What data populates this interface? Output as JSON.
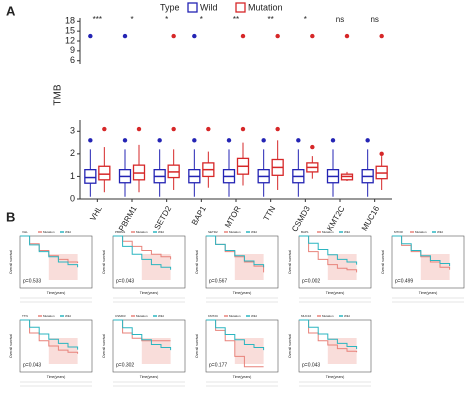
{
  "panels": [
    "A",
    "B"
  ],
  "chart_data": [
    {
      "type": "box",
      "ylabel": "TMB",
      "legend_title": "Type",
      "categories": [
        "VHL",
        "PBRM1",
        "SETD2",
        "BAP1",
        "MTOR",
        "TTN",
        "CSMD3",
        "KMT2C",
        "MUC16"
      ],
      "significance": [
        "***",
        "*",
        "*",
        "*",
        "**",
        "**",
        "*",
        "ns",
        "ns"
      ],
      "ylim": [
        0,
        3.5
      ],
      "yticks": [
        0,
        1,
        2,
        3
      ],
      "ylim_upper": [
        5,
        19
      ],
      "yticks_upper": [
        6,
        9,
        12,
        15,
        18
      ],
      "series": [
        {
          "name": "Wild",
          "color": "#2424b4",
          "median": [
            0.95,
            1.0,
            1.0,
            1.0,
            1.0,
            1.0,
            1.0,
            1.0,
            1.0
          ],
          "q1": [
            0.7,
            0.72,
            0.72,
            0.72,
            0.72,
            0.72,
            0.72,
            0.72,
            0.72
          ],
          "q3": [
            1.3,
            1.3,
            1.3,
            1.3,
            1.3,
            1.3,
            1.3,
            1.3,
            1.3
          ],
          "low": [
            0.1,
            0.1,
            0.1,
            0.1,
            0.1,
            0.1,
            0.1,
            0.1,
            0.1
          ],
          "high": [
            2.2,
            2.2,
            2.2,
            2.2,
            2.2,
            2.2,
            2.2,
            2.2,
            2.2
          ],
          "outlier": [
            2.6,
            2.6,
            2.6,
            2.6,
            2.6,
            2.6,
            2.6,
            2.6,
            2.6
          ],
          "top_outlier": [
            13.5,
            13.5,
            null,
            13.5,
            null,
            null,
            null,
            null,
            null
          ]
        },
        {
          "name": "Mutation",
          "color": "#d62728",
          "median": [
            1.1,
            1.15,
            1.2,
            1.3,
            1.45,
            1.4,
            1.4,
            1.0,
            1.15
          ],
          "q1": [
            0.85,
            0.85,
            0.95,
            1.0,
            1.1,
            1.05,
            1.2,
            0.85,
            0.9
          ],
          "q3": [
            1.45,
            1.5,
            1.5,
            1.6,
            1.8,
            1.75,
            1.6,
            1.1,
            1.45
          ],
          "low": [
            0.3,
            0.3,
            0.4,
            0.5,
            0.6,
            0.4,
            0.9,
            0.8,
            0.4
          ],
          "high": [
            2.3,
            2.4,
            2.2,
            2.1,
            2.5,
            2.6,
            1.9,
            1.2,
            1.9
          ],
          "outlier": [
            3.1,
            3.1,
            3.1,
            3.1,
            3.1,
            3.1,
            2.3,
            null,
            2.0
          ],
          "top_outlier": [
            null,
            null,
            13.5,
            null,
            13.5,
            13.5,
            13.5,
            13.5,
            13.5
          ]
        }
      ]
    },
    {
      "type": "km",
      "title": "VHL",
      "p": "p=0.533",
      "xlabel": "Time(years)",
      "ylabel": "Overall survival",
      "xlim": [
        0,
        15
      ],
      "ylim": [
        0,
        1
      ],
      "x": [
        0,
        2,
        4,
        6,
        8,
        10,
        12
      ],
      "series": [
        {
          "name": "Mutation",
          "color": "#e8827a",
          "values": [
            1,
            0.85,
            0.72,
            0.62,
            0.55,
            0.5,
            0.48
          ]
        },
        {
          "name": "Wild",
          "color": "#2bb5c0",
          "values": [
            1,
            0.83,
            0.7,
            0.6,
            0.5,
            0.45,
            0.4
          ]
        }
      ]
    },
    {
      "type": "km",
      "title": "PBRM1",
      "p": "p=0.043",
      "xlabel": "Time(years)",
      "ylabel": "Overall survival",
      "xlim": [
        0,
        15
      ],
      "ylim": [
        0,
        1
      ],
      "x": [
        0,
        2,
        4,
        6,
        8,
        10,
        12
      ],
      "series": [
        {
          "name": "Mutation",
          "color": "#e8827a",
          "values": [
            1,
            0.9,
            0.8,
            0.72,
            0.65,
            0.6,
            0.55
          ]
        },
        {
          "name": "Wild",
          "color": "#2bb5c0",
          "values": [
            1,
            0.8,
            0.65,
            0.55,
            0.45,
            0.4,
            0.35
          ]
        }
      ]
    },
    {
      "type": "km",
      "title": "SETD2",
      "p": "p=0.567",
      "xlabel": "Time(years)",
      "ylabel": "Overall survival",
      "xlim": [
        0,
        15
      ],
      "ylim": [
        0,
        1
      ],
      "x": [
        0,
        2,
        4,
        6,
        8,
        10,
        12
      ],
      "series": [
        {
          "name": "Mutation",
          "color": "#e8827a",
          "values": [
            1,
            0.84,
            0.7,
            0.6,
            0.5,
            0.42,
            0.3
          ]
        },
        {
          "name": "Wild",
          "color": "#2bb5c0",
          "values": [
            1,
            0.84,
            0.72,
            0.62,
            0.52,
            0.45,
            0.4
          ]
        }
      ]
    },
    {
      "type": "km",
      "title": "BAP1",
      "p": "p=0.002",
      "xlabel": "Time(years)",
      "ylabel": "Overall survival",
      "xlim": [
        0,
        15
      ],
      "ylim": [
        0,
        1
      ],
      "x": [
        0,
        2,
        4,
        6,
        8,
        10,
        12
      ],
      "series": [
        {
          "name": "Mutation",
          "color": "#e8827a",
          "values": [
            1,
            0.7,
            0.55,
            0.45,
            0.38,
            0.35,
            0.3
          ]
        },
        {
          "name": "Wild",
          "color": "#2bb5c0",
          "values": [
            1,
            0.86,
            0.74,
            0.64,
            0.55,
            0.5,
            0.45
          ]
        }
      ]
    },
    {
      "type": "km",
      "title": "MTOR",
      "p": "p=0.499",
      "xlabel": "Time(years)",
      "ylabel": "Overall survival",
      "xlim": [
        0,
        15
      ],
      "ylim": [
        0,
        1
      ],
      "x": [
        0,
        2,
        4,
        6,
        8,
        10,
        12
      ],
      "series": [
        {
          "name": "Mutation",
          "color": "#e8827a",
          "values": [
            1,
            0.82,
            0.7,
            0.6,
            0.5,
            0.4,
            0.35
          ]
        },
        {
          "name": "Wild",
          "color": "#2bb5c0",
          "values": [
            1,
            0.85,
            0.72,
            0.62,
            0.53,
            0.47,
            0.42
          ]
        }
      ]
    },
    {
      "type": "km",
      "title": "TTN",
      "p": "p=0.043",
      "xlabel": "Time(years)",
      "ylabel": "Overall survival",
      "xlim": [
        0,
        15
      ],
      "ylim": [
        0,
        1
      ],
      "x": [
        0,
        2,
        4,
        6,
        8,
        10,
        12
      ],
      "series": [
        {
          "name": "Mutation",
          "color": "#e8827a",
          "values": [
            1,
            0.75,
            0.6,
            0.5,
            0.42,
            0.38,
            0.35
          ]
        },
        {
          "name": "Wild",
          "color": "#2bb5c0",
          "values": [
            1,
            0.86,
            0.73,
            0.63,
            0.55,
            0.48,
            0.43
          ]
        }
      ]
    },
    {
      "type": "km",
      "title": "CSMD3",
      "p": "p=0.302",
      "xlabel": "Time(years)",
      "ylabel": "Overall survival",
      "xlim": [
        0,
        15
      ],
      "ylim": [
        0,
        1
      ],
      "x": [
        0,
        2,
        4,
        6,
        8,
        10,
        12
      ],
      "series": [
        {
          "name": "Mutation",
          "color": "#e8827a",
          "values": [
            1,
            0.75,
            0.65,
            0.6,
            0.6,
            0.6,
            0.6
          ]
        },
        {
          "name": "Wild",
          "color": "#2bb5c0",
          "values": [
            1,
            0.85,
            0.72,
            0.62,
            0.53,
            0.47,
            0.42
          ]
        }
      ]
    },
    {
      "type": "km",
      "title": "KMT2C",
      "p": "p=0.177",
      "xlabel": "Time(years)",
      "ylabel": "Overall survival",
      "xlim": [
        0,
        15
      ],
      "ylim": [
        0,
        1
      ],
      "x": [
        0,
        2,
        4,
        6,
        8,
        10,
        12
      ],
      "series": [
        {
          "name": "Mutation",
          "color": "#e8827a",
          "values": [
            1,
            0.8,
            0.6,
            0.3,
            0.1,
            0.1,
            0.1
          ]
        },
        {
          "name": "Wild",
          "color": "#2bb5c0",
          "values": [
            1,
            0.85,
            0.72,
            0.62,
            0.53,
            0.47,
            0.42
          ]
        }
      ]
    },
    {
      "type": "km",
      "title": "MUC16",
      "p": "p=0.043",
      "xlabel": "Time(years)",
      "ylabel": "Overall survival",
      "xlim": [
        0,
        15
      ],
      "ylim": [
        0,
        1
      ],
      "x": [
        0,
        2,
        4,
        6,
        8,
        10,
        12
      ],
      "series": [
        {
          "name": "Mutation",
          "color": "#e8827a",
          "values": [
            1,
            0.75,
            0.6,
            0.52,
            0.45,
            0.4,
            0.38
          ]
        },
        {
          "name": "Wild",
          "color": "#2bb5c0",
          "values": [
            1,
            0.86,
            0.73,
            0.63,
            0.55,
            0.49,
            0.44
          ]
        }
      ]
    }
  ]
}
